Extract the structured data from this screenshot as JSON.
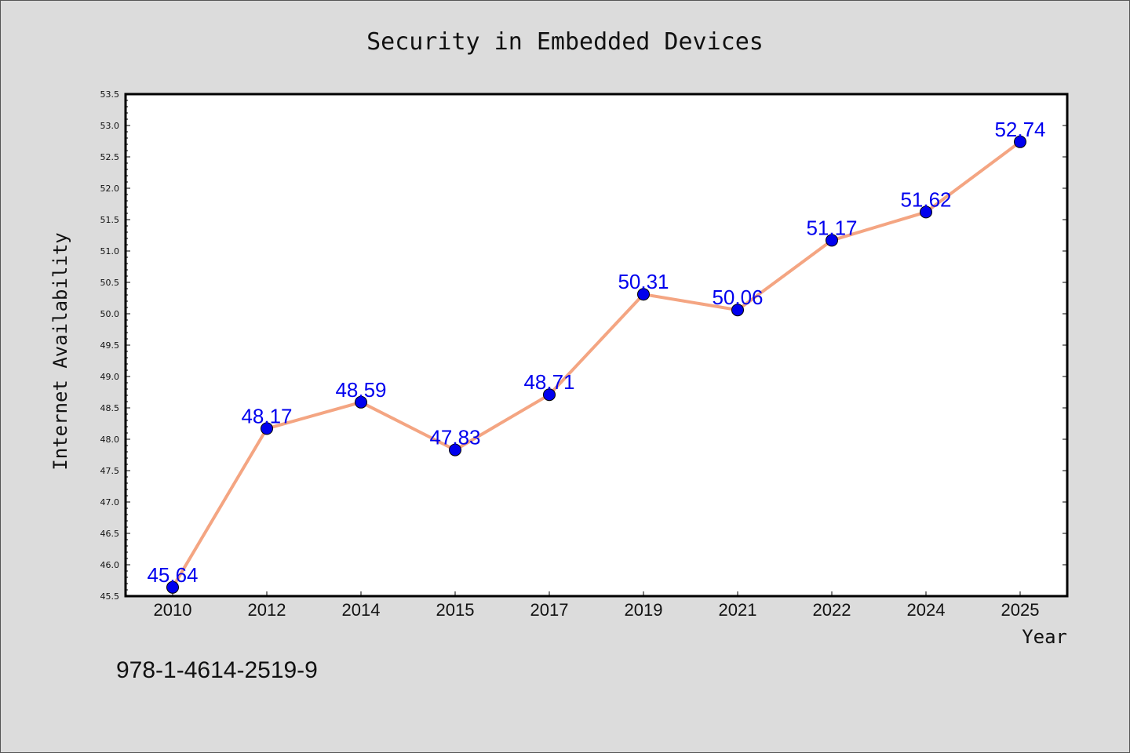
{
  "chart_data": {
    "type": "line",
    "title": "Security in Embedded Devices",
    "xlabel": "Year",
    "ylabel": "Internet Availability",
    "categories": [
      "2010",
      "2012",
      "2014",
      "2015",
      "2017",
      "2019",
      "2021",
      "2022",
      "2024",
      "2025"
    ],
    "series": [
      {
        "values": [
          45.64,
          48.17,
          48.59,
          47.83,
          48.71,
          50.31,
          50.06,
          51.17,
          51.62,
          52.74
        ],
        "labels": [
          "45.64",
          "48.17",
          "48.59",
          "47.83",
          "48.71",
          "50.31",
          "50.06",
          "51.17",
          "51.62",
          "52.74"
        ],
        "line_color": "#f4a582",
        "marker_color": "#0000ee",
        "label_color": "#0000ee"
      }
    ],
    "ylim": [
      45.5,
      53.5
    ],
    "yticks": [
      "45.5",
      "46.0",
      "46.5",
      "47.0",
      "47.5",
      "48.0",
      "48.5",
      "49.0",
      "49.5",
      "50.0",
      "50.5",
      "51.0",
      "51.5",
      "52.0",
      "52.5",
      "53.0",
      "53.5"
    ],
    "grid": false,
    "legend": "none"
  },
  "footer_code": "978-1-4614-2519-9"
}
